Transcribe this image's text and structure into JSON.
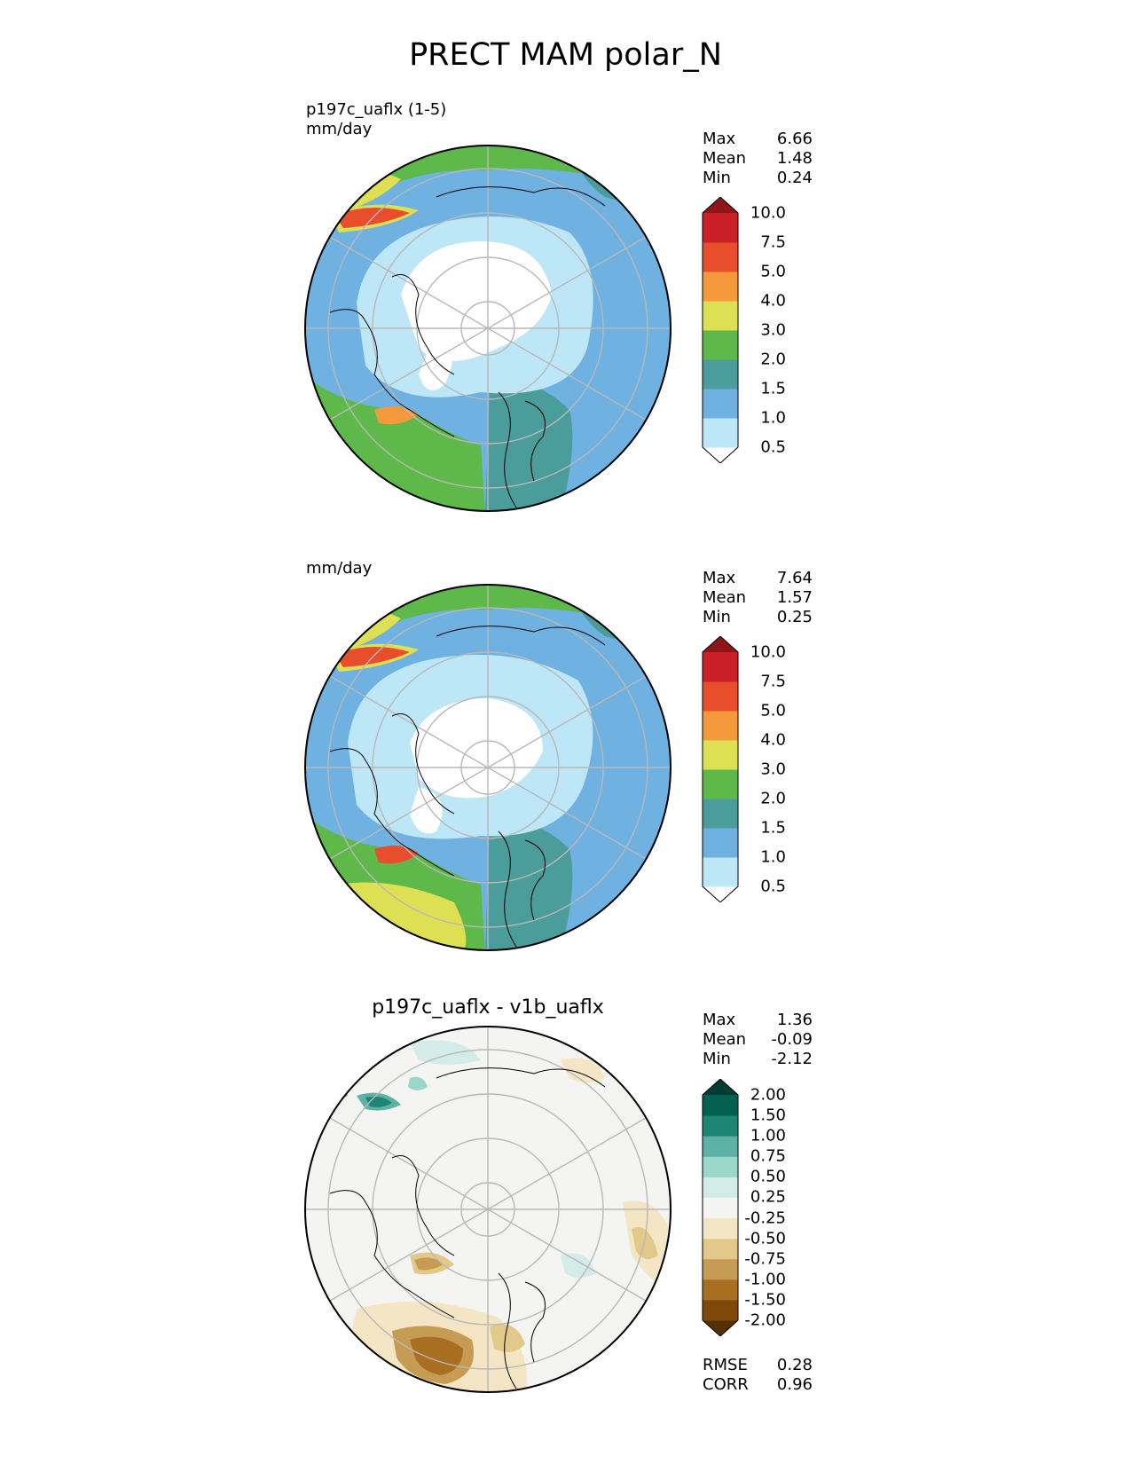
{
  "title": "PRECT MAM polar_N",
  "colors": {
    "precip_palette": [
      "#ffffff",
      "#bde6f7",
      "#6fb1e0",
      "#4b9d9c",
      "#5fb84a",
      "#dee054",
      "#f49a3c",
      "#e84d2c",
      "#c91f26",
      "#8f1519"
    ],
    "diff_palette": [
      "#543005",
      "#7f470a",
      "#a86e22",
      "#c69c55",
      "#e2c98a",
      "#f4e6c5",
      "#f4f4f2",
      "#d4ece8",
      "#9bd6cb",
      "#5db2a5",
      "#1e8474",
      "#016151",
      "#003c30"
    ],
    "coastline": "#000000",
    "gridline": "#b8b8b8"
  },
  "panels": [
    {
      "title_line1": "p197c_uaflx (1-5)",
      "title_line2": "mm/day",
      "stats": [
        {
          "label": "Max",
          "value": "6.66"
        },
        {
          "label": "Mean",
          "value": "1.48"
        },
        {
          "label": "Min",
          "value": "0.24"
        }
      ],
      "colorbar_levels": [
        "0.5",
        "1.0",
        "1.5",
        "2.0",
        "3.0",
        "4.0",
        "5.0",
        "7.5",
        "10.0"
      ]
    },
    {
      "title_line1": "",
      "title_line2": "mm/day",
      "stats": [
        {
          "label": "Max",
          "value": "7.64"
        },
        {
          "label": "Mean",
          "value": "1.57"
        },
        {
          "label": "Min",
          "value": "0.25"
        }
      ],
      "colorbar_levels": [
        "0.5",
        "1.0",
        "1.5",
        "2.0",
        "3.0",
        "4.0",
        "5.0",
        "7.5",
        "10.0"
      ]
    },
    {
      "title_center": "p197c_uaflx - v1b_uaflx",
      "stats": [
        {
          "label": "Max",
          "value": "1.36"
        },
        {
          "label": "Mean",
          "value": "-0.09"
        },
        {
          "label": "Min",
          "value": "-2.12"
        }
      ],
      "colorbar_levels": [
        "-2.00",
        "-1.50",
        "-1.00",
        "-0.75",
        "-0.50",
        "-0.25",
        "0.25",
        "0.50",
        "0.75",
        "1.00",
        "1.50",
        "2.00"
      ],
      "metrics": [
        {
          "label": "RMSE",
          "value": "0.28"
        },
        {
          "label": "CORR",
          "value": "0.96"
        }
      ]
    }
  ]
}
